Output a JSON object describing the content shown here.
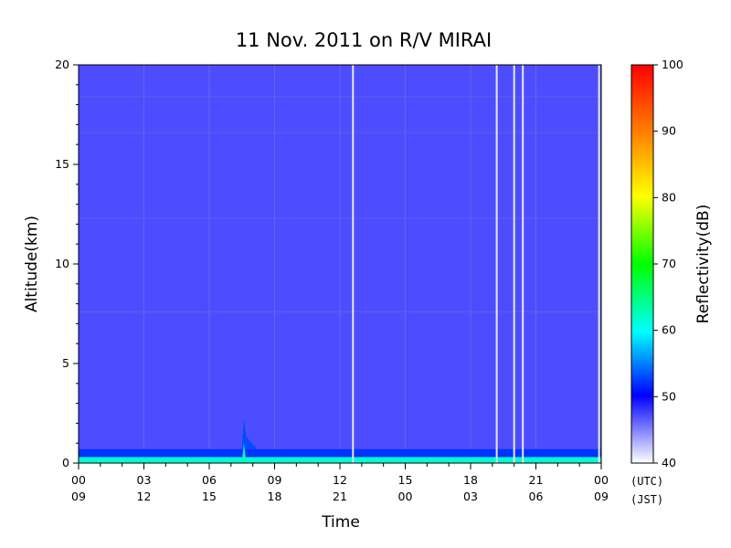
{
  "chart_data": {
    "type": "heatmap",
    "title": "11 Nov. 2011  on R/V MIRAI",
    "xlabel": "Time",
    "ylabel": "Altitude(km)",
    "ylim": [
      0,
      20
    ],
    "y_ticks": [
      "0",
      "5",
      "10",
      "15",
      "20"
    ],
    "x_ticks_utc": [
      "00",
      "03",
      "06",
      "09",
      "12",
      "15",
      "18",
      "21",
      "00"
    ],
    "x_ticks_jst": [
      "09",
      "12",
      "15",
      "18",
      "21",
      "00",
      "03",
      "06",
      "09"
    ],
    "time_zone_labels": {
      "utc": "(UTC)",
      "jst": "(JST)"
    },
    "colorbar": {
      "label": "Reflectivity(dB)",
      "range": [
        40,
        100
      ],
      "ticks": [
        "40",
        "50",
        "60",
        "70",
        "80",
        "90",
        "100"
      ]
    },
    "background_reflectivity_dB": 47,
    "surface_layer": {
      "top_km": 0.7,
      "reflectivity_dB": 52
    },
    "near_surface_layer": {
      "top_km": 0.3,
      "reflectivity_dB": 62
    },
    "horizontal_artifacts_km": [
      18.4,
      16.6,
      12.3,
      7.6
    ],
    "data_gaps_utc_hours": [
      12.6,
      19.2,
      20.0,
      20.4,
      23.9
    ],
    "convective_feature": {
      "start_utc_hour": 7.5,
      "end_utc_hour": 8.2,
      "top_km": 2.2
    }
  }
}
